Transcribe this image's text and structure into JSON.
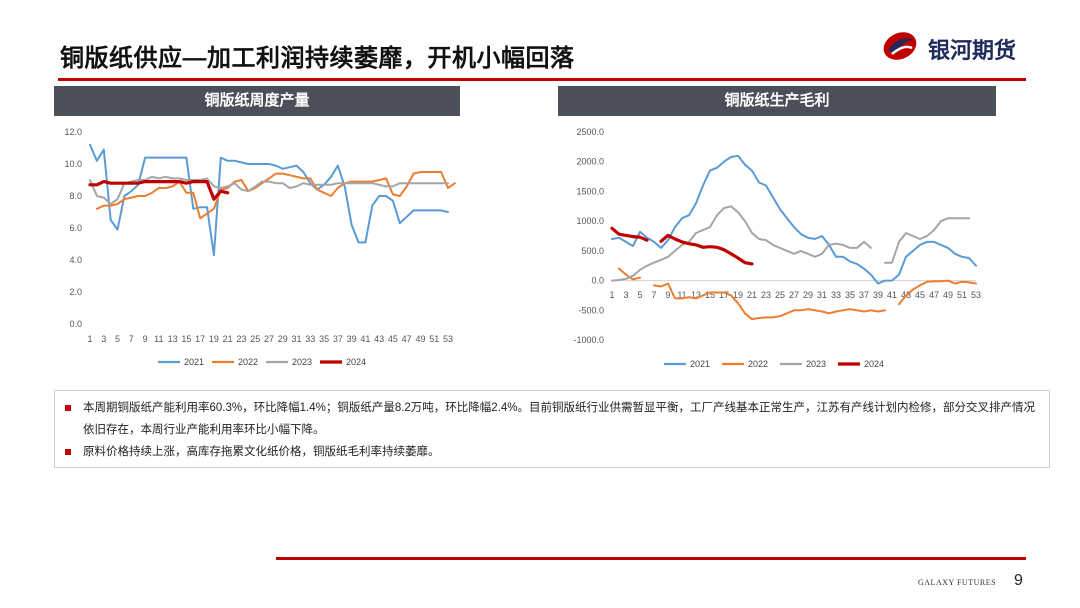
{
  "header": {
    "title": "铜版纸供应—加工利润持续萎靡，开机小幅回落",
    "logo_text": "银河期货"
  },
  "colors": {
    "s2021": "#5b9bd5",
    "s2022": "#ed7d31",
    "s2023": "#a5a5a5",
    "s2024": "#c00000",
    "accent": "#c00000"
  },
  "chart_data": [
    {
      "type": "line",
      "title": "铜版纸周度产量",
      "ylim": [
        0,
        12
      ],
      "yticks": [
        "0.0",
        "2.0",
        "4.0",
        "6.0",
        "8.0",
        "10.0",
        "12.0"
      ],
      "x_labels": [
        "1",
        "3",
        "5",
        "7",
        "9",
        "11",
        "13",
        "15",
        "17",
        "19",
        "21",
        "23",
        "25",
        "27",
        "29",
        "31",
        "33",
        "35",
        "37",
        "39",
        "41",
        "43",
        "45",
        "47",
        "49",
        "51",
        "53"
      ],
      "series": [
        {
          "name": "2021",
          "color": "#5b9bd5",
          "values": [
            11.2,
            10.2,
            10.9,
            6.5,
            5.9,
            8.0,
            8.3,
            8.7,
            10.4,
            10.4,
            10.4,
            10.4,
            10.4,
            10.4,
            10.4,
            7.2,
            7.3,
            7.3,
            4.3,
            10.4,
            10.2,
            10.2,
            10.1,
            10.0,
            10.0,
            10.0,
            10.0,
            9.9,
            9.7,
            9.8,
            9.9,
            9.5,
            8.8,
            8.4,
            8.7,
            9.2,
            9.9,
            8.6,
            6.2,
            5.1,
            5.1,
            7.4,
            8.0,
            8.0,
            7.7,
            6.3,
            6.7,
            7.1,
            7.1,
            7.1,
            7.1,
            7.1,
            7.0
          ]
        },
        {
          "name": "2022",
          "color": "#ed7d31",
          "values": [
            null,
            7.2,
            7.4,
            7.4,
            7.5,
            7.8,
            7.9,
            8.0,
            8.0,
            8.2,
            8.5,
            8.5,
            8.6,
            8.9,
            8.2,
            8.2,
            6.6,
            6.9,
            7.2,
            8.4,
            8.5,
            8.9,
            9.0,
            8.3,
            8.5,
            8.8,
            9.1,
            9.4,
            9.4,
            9.3,
            9.2,
            9.1,
            9.1,
            8.4,
            8.2,
            8.0,
            8.5,
            8.8,
            8.9,
            8.9,
            8.9,
            8.9,
            9.0,
            9.1,
            8.1,
            8.0,
            8.6,
            9.4,
            9.5,
            9.5,
            9.5,
            9.5,
            8.5,
            8.8
          ]
        },
        {
          "name": "2023",
          "color": "#a5a5a5",
          "values": [
            9.0,
            8.0,
            7.9,
            7.5,
            7.8,
            8.8,
            8.9,
            9.0,
            9.0,
            9.2,
            9.1,
            9.2,
            9.1,
            9.1,
            9.0,
            9.0,
            9.0,
            9.1,
            8.6,
            8.5,
            8.6,
            8.8,
            8.4,
            8.3,
            8.6,
            8.9,
            8.9,
            8.8,
            8.8,
            8.5,
            8.6,
            8.8,
            8.7,
            8.7,
            8.7,
            8.7,
            8.8,
            8.8,
            8.8,
            8.8,
            8.8,
            8.8,
            8.7,
            8.6,
            8.6,
            8.8,
            8.8,
            8.8,
            8.8,
            8.8,
            8.8,
            8.8,
            8.8
          ]
        },
        {
          "name": "2024",
          "color": "#c00000",
          "values": [
            8.7,
            8.7,
            8.9,
            8.8,
            8.8,
            8.8,
            8.8,
            8.8,
            8.9,
            8.9,
            8.9,
            8.9,
            8.9,
            8.9,
            8.8,
            8.9,
            8.9,
            8.9,
            7.8,
            8.3,
            8.2
          ]
        }
      ]
    },
    {
      "type": "line",
      "title": "铜版纸生产毛利",
      "ylim": [
        -1000,
        2500
      ],
      "yticks": [
        "-1000.0",
        "-500.0",
        "0.0",
        "500.0",
        "1000.0",
        "1500.0",
        "2000.0",
        "2500.0"
      ],
      "x_labels": [
        "1",
        "3",
        "5",
        "7",
        "9",
        "11",
        "13",
        "15",
        "17",
        "19",
        "21",
        "23",
        "25",
        "27",
        "29",
        "31",
        "33",
        "35",
        "37",
        "39",
        "41",
        "43",
        "45",
        "47",
        "49",
        "51",
        "53"
      ],
      "series": [
        {
          "name": "2021",
          "color": "#5b9bd5",
          "values": [
            700,
            720,
            650,
            580,
            820,
            720,
            650,
            550,
            680,
            900,
            1050,
            1100,
            1300,
            1600,
            1850,
            1900,
            2000,
            2080,
            2100,
            1950,
            1850,
            1650,
            1600,
            1400,
            1200,
            1050,
            900,
            780,
            720,
            700,
            750,
            600,
            400,
            400,
            320,
            280,
            200,
            100,
            -50,
            0,
            0,
            100,
            400,
            500,
            600,
            650,
            650,
            600,
            550,
            450,
            400,
            380,
            250
          ]
        },
        {
          "name": "2022",
          "color": "#ed7d31",
          "values": [
            null,
            200,
            100,
            20,
            50,
            null,
            -80,
            -100,
            -50,
            -300,
            -300,
            -280,
            -300,
            -250,
            -200,
            -200,
            -200,
            -250,
            -380,
            -550,
            -650,
            -630,
            -620,
            -620,
            -600,
            -550,
            -500,
            -500,
            -480,
            -500,
            -520,
            -550,
            -520,
            -500,
            -480,
            -500,
            -520,
            -500,
            -520,
            -500,
            null,
            -400,
            -250,
            -150,
            -80,
            -20,
            -10,
            -10,
            0,
            -50,
            -20,
            -30,
            -50
          ]
        },
        {
          "name": "2023",
          "color": "#a5a5a5",
          "values": [
            0,
            10,
            30,
            80,
            180,
            250,
            300,
            350,
            400,
            500,
            600,
            650,
            800,
            850,
            900,
            1100,
            1220,
            1250,
            1150,
            1000,
            800,
            700,
            680,
            600,
            550,
            500,
            450,
            500,
            450,
            400,
            450,
            600,
            620,
            600,
            550,
            550,
            650,
            550,
            null,
            300,
            300,
            650,
            800,
            750,
            700,
            750,
            850,
            1000,
            1050,
            1050,
            1050,
            1050
          ]
        },
        {
          "name": "2024",
          "color": "#c00000",
          "values": [
            880,
            780,
            760,
            740,
            730,
            680,
            null,
            660,
            760,
            700,
            650,
            620,
            600,
            560,
            570,
            560,
            520,
            450,
            380,
            300,
            280
          ]
        }
      ]
    }
  ],
  "notes": [
    "本周期铜版纸产能利用率60.3%，环比降幅1.4%；铜版纸产量8.2万吨，环比降幅2.4%。目前铜版纸行业供需暂显平衡，工厂产线基本正常生产，江苏有产线计划内检修，部分交叉排产情况依旧存在，本周行业产能利用率环比小幅下降。",
    "原料价格持续上涨，高库存拖累文化纸价格，铜版纸毛利率持续萎靡。"
  ],
  "footer": {
    "brand": "GALAXY FUTURES",
    "page": "9"
  }
}
